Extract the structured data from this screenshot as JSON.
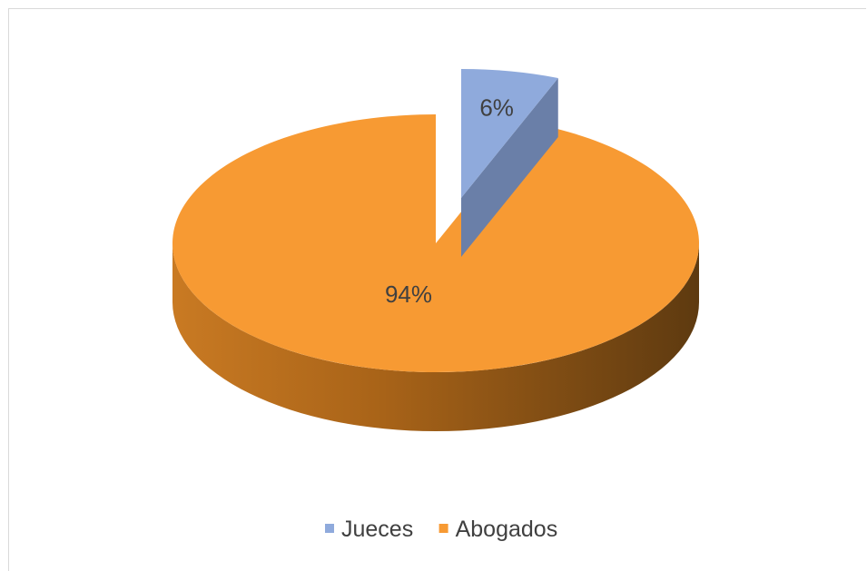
{
  "chart_data": {
    "type": "pie",
    "title": "",
    "categories": [
      "Jueces",
      "Abogados"
    ],
    "values": [
      6,
      94
    ],
    "labels": [
      "6%",
      "94%"
    ],
    "colors": [
      "#8faadc",
      "#f79a33"
    ],
    "exploded": [
      "Jueces"
    ],
    "style": "3d",
    "legend": "bottom"
  }
}
